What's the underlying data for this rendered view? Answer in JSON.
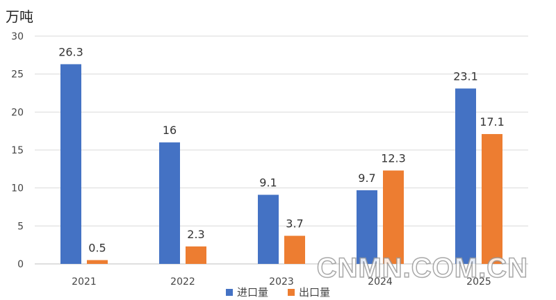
{
  "unit_label": "万吨",
  "watermark": "CNMN.COM.CN",
  "colors": {
    "import": "#4472C4",
    "export": "#ED7D31"
  },
  "chart_data": {
    "type": "bar",
    "title": "",
    "xlabel": "",
    "ylabel": "万吨",
    "categories": [
      "2021",
      "2022",
      "2023",
      "2024",
      "2025"
    ],
    "series": [
      {
        "name": "进口量",
        "values": [
          26.3,
          16,
          9.1,
          9.7,
          23.1
        ]
      },
      {
        "name": "出口量",
        "values": [
          0.5,
          2.3,
          3.7,
          12.3,
          17.1
        ]
      }
    ],
    "ylim": [
      0,
      30
    ],
    "yticks": [
      0,
      5,
      10,
      15,
      20,
      25,
      30
    ],
    "grid": true,
    "legend": "bottom"
  }
}
